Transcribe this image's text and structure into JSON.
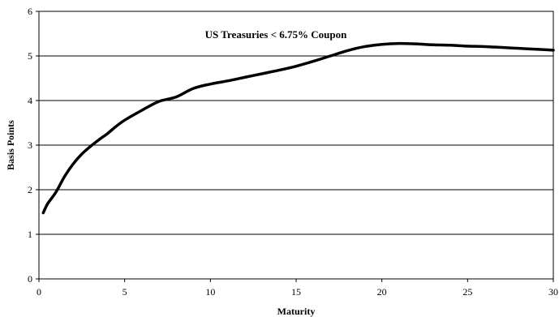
{
  "chart_data": {
    "type": "line",
    "title": "",
    "annotation": "US Treasuries < 6.75% Coupon",
    "xlabel": "Maturity",
    "ylabel": "Basis Points",
    "xlim": [
      0,
      30
    ],
    "ylim": [
      0,
      6
    ],
    "x_ticks": [
      0,
      5,
      10,
      15,
      20,
      25,
      30
    ],
    "y_ticks": [
      0,
      1,
      2,
      3,
      4,
      5,
      6
    ],
    "grid": "horizontal",
    "legend": "none",
    "series": [
      {
        "color": "#000000",
        "x": [
          0.25,
          0.5,
          1,
          1.5,
          2,
          2.5,
          3,
          3.5,
          4,
          4.5,
          5,
          6,
          7,
          8,
          9,
          10,
          11,
          12,
          13,
          14,
          15,
          16,
          17,
          18,
          19,
          20,
          21,
          22,
          23,
          24,
          25,
          26,
          27,
          28,
          29,
          30
        ],
        "y": [
          1.48,
          1.68,
          1.95,
          2.3,
          2.58,
          2.8,
          2.97,
          3.12,
          3.26,
          3.42,
          3.56,
          3.78,
          3.98,
          4.08,
          4.27,
          4.37,
          4.44,
          4.52,
          4.6,
          4.68,
          4.77,
          4.88,
          5.0,
          5.12,
          5.21,
          5.26,
          5.28,
          5.27,
          5.25,
          5.24,
          5.22,
          5.21,
          5.19,
          5.17,
          5.15,
          5.13
        ]
      }
    ]
  }
}
